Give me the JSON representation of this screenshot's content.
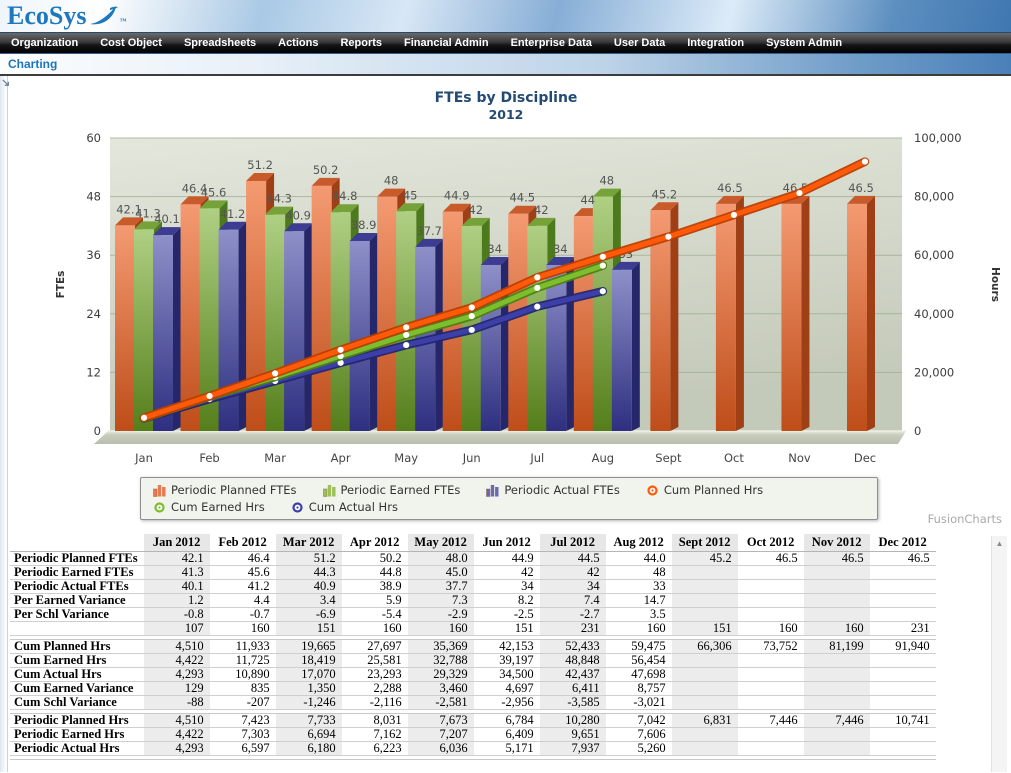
{
  "banner": {
    "logo_text": "EcoSys",
    "trademark": "™"
  },
  "menu": {
    "items": [
      "Organization",
      "Cost Object",
      "Spreadsheets",
      "Actions",
      "Reports",
      "Financial Admin",
      "Enterprise Data",
      "User Data",
      "Integration",
      "System Admin"
    ]
  },
  "breadcrumb": {
    "label": "Charting"
  },
  "watermark": "FusionCharts",
  "chart_data": {
    "type": "combination",
    "title": "FTEs by Discipline",
    "subtitle": "2012",
    "x_categories": [
      "Jan",
      "Feb",
      "Mar",
      "Apr",
      "May",
      "Jun",
      "Jul",
      "Aug",
      "Sept",
      "Oct",
      "Nov",
      "Dec"
    ],
    "left_axis": {
      "label": "FTEs",
      "min": 0,
      "max": 60,
      "ticks": [
        "0",
        "12",
        "24",
        "36",
        "48",
        "60"
      ]
    },
    "right_axis": {
      "label": "Hours",
      "min": 0,
      "max": 100000,
      "ticks": [
        "0",
        "20,000",
        "40,000",
        "60,000",
        "80,000",
        "100,000"
      ]
    },
    "grid": true,
    "legend_position": "bottom",
    "bar_series": [
      {
        "name": "Periodic Planned FTEs",
        "color": "#E8794E",
        "values": [
          42.1,
          46.4,
          51.2,
          50.2,
          48,
          44.9,
          44.5,
          44,
          45.2,
          46.5,
          46.5,
          46.5
        ],
        "labels": [
          "42.1",
          "46.4",
          "51.2",
          "50.2",
          "48",
          "44.9",
          "44.5",
          "44",
          "45.2",
          "46.5",
          "46.5",
          "46.5"
        ]
      },
      {
        "name": "Periodic Earned FTEs",
        "color": "#9BBF59",
        "values": [
          41.3,
          45.6,
          44.3,
          44.8,
          45,
          42,
          42,
          48
        ],
        "labels": [
          "41.3",
          "45.6",
          "44.3",
          "44.8",
          "45",
          "42",
          "42",
          "48"
        ]
      },
      {
        "name": "Periodic Actual FTEs",
        "color": "#6A6AAE",
        "values": [
          40.1,
          41.2,
          40.9,
          38.9,
          37.7,
          34,
          34,
          33
        ],
        "labels": [
          "40.1",
          "41.2",
          "40.9",
          "38.9",
          "37.7",
          "34",
          "34",
          "33"
        ]
      }
    ],
    "line_series": [
      {
        "name": "Cum Planned Hrs",
        "color": "#FF5A0A",
        "values": [
          4510,
          11933,
          19665,
          27697,
          35369,
          42153,
          52433,
          59475,
          66306,
          73752,
          81199,
          91940
        ]
      },
      {
        "name": "Cum Earned Hrs",
        "color": "#7DBE2E",
        "values": [
          4422,
          11725,
          18419,
          25581,
          32788,
          39197,
          48848,
          56454
        ]
      },
      {
        "name": "Cum Actual Hrs",
        "color": "#3C3FA8",
        "values": [
          4293,
          10890,
          17070,
          23293,
          29329,
          34500,
          42437,
          47698
        ]
      }
    ]
  },
  "table": {
    "columns": [
      "",
      "Jan 2012",
      "Feb 2012",
      "Mar 2012",
      "Apr 2012",
      "May 2012",
      "Jun 2012",
      "Jul 2012",
      "Aug 2012",
      "Sept 2012",
      "Oct 2012",
      "Nov 2012",
      "Dec 2012"
    ],
    "rows": [
      {
        "label": "Periodic Planned FTEs",
        "values": [
          "42.1",
          "46.4",
          "51.2",
          "50.2",
          "48.0",
          "44.9",
          "44.5",
          "44.0",
          "45.2",
          "46.5",
          "46.5",
          "46.5"
        ]
      },
      {
        "label": "Periodic Earned FTEs",
        "values": [
          "41.3",
          "45.6",
          "44.3",
          "44.8",
          "45.0",
          "42",
          "42",
          "48",
          "",
          "",
          "",
          ""
        ]
      },
      {
        "label": "Periodic Actual FTEs",
        "values": [
          "40.1",
          "41.2",
          "40.9",
          "38.9",
          "37.7",
          "34",
          "34",
          "33",
          "",
          "",
          "",
          ""
        ]
      },
      {
        "label": "Per Earned Variance",
        "values": [
          "1.2",
          "4.4",
          "3.4",
          "5.9",
          "7.3",
          "8.2",
          "7.4",
          "14.7",
          "",
          "",
          "",
          ""
        ]
      },
      {
        "label": "Per Schl Variance",
        "values": [
          "-0.8",
          "-0.7",
          "-6.9",
          "-5.4",
          "-2.9",
          "-2.5",
          "-2.7",
          "3.5",
          "",
          "",
          "",
          ""
        ]
      },
      {
        "label": "",
        "values": [
          "107",
          "160",
          "151",
          "160",
          "160",
          "151",
          "231",
          "160",
          "151",
          "160",
          "160",
          "231"
        ]
      },
      {
        "separator": true
      },
      {
        "label": "Cum Planned Hrs",
        "values": [
          "4,510",
          "11,933",
          "19,665",
          "27,697",
          "35,369",
          "42,153",
          "52,433",
          "59,475",
          "66,306",
          "73,752",
          "81,199",
          "91,940"
        ]
      },
      {
        "label": "Cum Earned Hrs",
        "values": [
          "4,422",
          "11,725",
          "18,419",
          "25,581",
          "32,788",
          "39,197",
          "48,848",
          "56,454",
          "",
          "",
          "",
          ""
        ]
      },
      {
        "label": "Cum Actual Hrs",
        "values": [
          "4,293",
          "10,890",
          "17,070",
          "23,293",
          "29,329",
          "34,500",
          "42,437",
          "47,698",
          "",
          "",
          "",
          ""
        ]
      },
      {
        "label": "Cum Earned Variance",
        "values": [
          "129",
          "835",
          "1,350",
          "2,288",
          "3,460",
          "4,697",
          "6,411",
          "8,757",
          "",
          "",
          "",
          ""
        ]
      },
      {
        "label": "Cum Schl Variance",
        "values": [
          "-88",
          "-207",
          "-1,246",
          "-2,116",
          "-2,581",
          "-2,956",
          "-3,585",
          "-3,021",
          "",
          "",
          "",
          ""
        ]
      },
      {
        "separator": true
      },
      {
        "label": "Periodic Planned Hrs",
        "values": [
          "4,510",
          "7,423",
          "7,733",
          "8,031",
          "7,673",
          "6,784",
          "10,280",
          "7,042",
          "6,831",
          "7,446",
          "7,446",
          "10,741"
        ]
      },
      {
        "label": "Periodic Earned Hrs",
        "values": [
          "4,422",
          "7,303",
          "6,694",
          "7,162",
          "7,207",
          "6,409",
          "9,651",
          "7,606",
          "",
          "",
          "",
          ""
        ]
      },
      {
        "label": "Periodic Actual Hrs",
        "values": [
          "4,293",
          "6,597",
          "6,180",
          "6,223",
          "6,036",
          "5,171",
          "7,937",
          "5,260",
          "",
          "",
          "",
          ""
        ]
      }
    ]
  }
}
